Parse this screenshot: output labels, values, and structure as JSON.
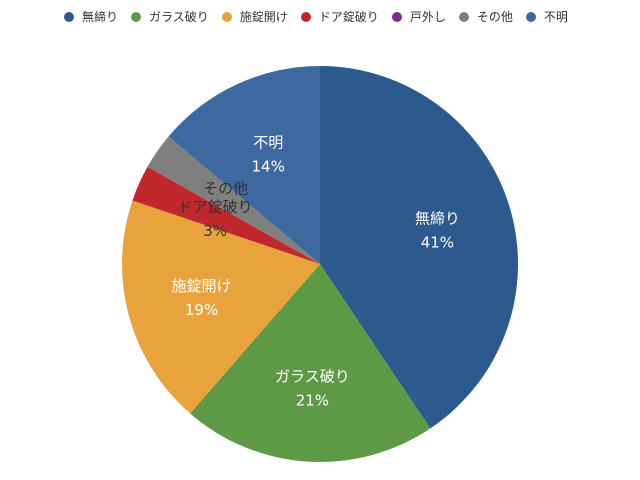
{
  "chart_data": {
    "type": "pie",
    "title": "",
    "legend_position": "top",
    "slices": [
      {
        "label": "無締り",
        "value": 41,
        "value_label": "41%",
        "color": "#2D5A8E"
      },
      {
        "label": "ガラス破り",
        "value": 21,
        "value_label": "21%",
        "color": "#5E9A46"
      },
      {
        "label": "施錠開け",
        "value": 19,
        "value_label": "19%",
        "color": "#E8A33C"
      },
      {
        "label": "ドア錠破り",
        "value": 3,
        "value_label": "3%",
        "color": "#C0282D"
      },
      {
        "label": "戸外し",
        "value": 0,
        "value_label": "",
        "color": "#7A2E8E"
      },
      {
        "label": "その他",
        "value": 3,
        "value_label": "",
        "color": "#7F7F7F"
      },
      {
        "label": "不明",
        "value": 14,
        "value_label": "14%",
        "color": "#3E68A0"
      }
    ]
  }
}
